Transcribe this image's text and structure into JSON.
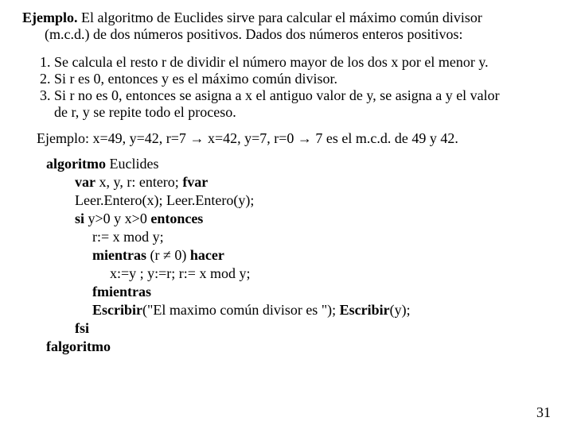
{
  "intro": {
    "label": "Ejemplo.",
    "line1_rest": " El algoritmo de Euclides sirve para calcular el máximo común divisor",
    "line2": "(m.c.d.) de dos números positivos. Dados dos números enteros positivos:"
  },
  "steps": {
    "s1": "1. Se calcula el resto r de dividir el número mayor de los dos x por el menor y.",
    "s2": "2. Si r es 0, entonces y es el máximo común divisor.",
    "s3a": "3. Si r no es 0, entonces se asigna a x el antiguo valor de y, se asigna a y el valor",
    "s3b": "de r, y se repite todo el proceso."
  },
  "example": {
    "prefix": "Ejemplo:   x=49, y=42, r=7  ",
    "arrow1": "→",
    "mid": "  x=42, y=7, r=0  ",
    "arrow2": "→",
    "suffix": "  7 es el m.c.d. de 49 y 42."
  },
  "code": {
    "l1_kw": "algoritmo",
    "l1_rest": " Euclides",
    "l2_kw1": "var",
    "l2_rest": "  x, y, r: entero;  ",
    "l2_kw2": "fvar",
    "l3": "Leer.Entero(x);  Leer.Entero(y);",
    "l4_kw1": "si",
    "l4_mid": " y>0 y x>0 ",
    "l4_kw2": "entonces",
    "l5": "r:= x mod y;",
    "l6_kw1": "mientras",
    "l6_mid": " (r ≠ 0) ",
    "l6_kw2": "hacer",
    "l7": "x:=y ;  y:=r;  r:= x mod y;",
    "l8": "fmientras",
    "l9a": "Escribir",
    "l9b": "(\"El maximo común divisor es \"); ",
    "l9c": "Escribir",
    "l9d": "(y);",
    "l10": "fsi",
    "l11": "falgoritmo"
  },
  "pagenum": "31"
}
